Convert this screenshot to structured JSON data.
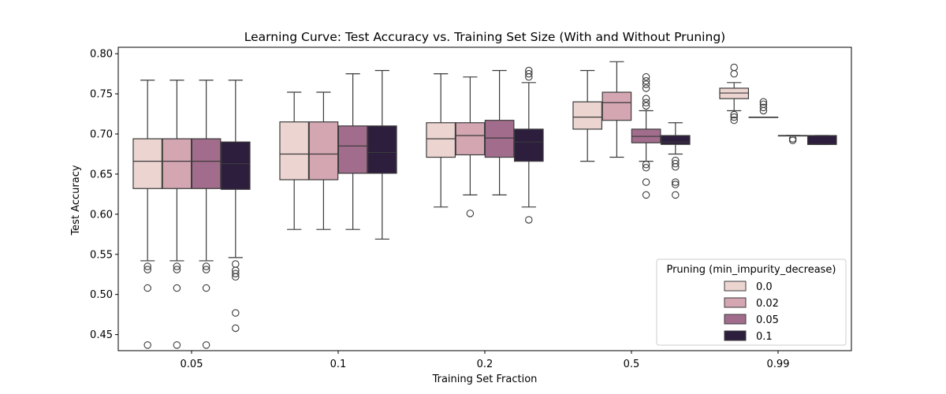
{
  "chart_data": {
    "type": "box",
    "title": "Learning Curve: Test Accuracy vs. Training Set Size (With and Without Pruning)",
    "xlabel": "Training Set Fraction",
    "ylabel": "Test Accuracy",
    "ylim": [
      0.43,
      0.808
    ],
    "yticks": [
      0.45,
      0.5,
      0.55,
      0.6,
      0.65,
      0.7,
      0.75,
      0.8
    ],
    "ytick_labels": [
      "0.45",
      "0.50",
      "0.55",
      "0.60",
      "0.65",
      "0.70",
      "0.75",
      "0.80"
    ],
    "categories": [
      "0.05",
      "0.1",
      "0.2",
      "0.5",
      "0.99"
    ],
    "grid": false,
    "legend": {
      "title": "Pruning (min_impurity_decrease)",
      "placement": "lower-right"
    },
    "series": [
      {
        "name": "0.0",
        "color": "#ecd5d1",
        "boxes": [
          {
            "whislo": 0.542,
            "q1": 0.632,
            "med": 0.666,
            "q3": 0.694,
            "whishi": 0.767,
            "fliers": [
              0.535,
              0.531,
              0.508,
              0.437
            ]
          },
          {
            "whislo": 0.581,
            "q1": 0.643,
            "med": 0.675,
            "q3": 0.715,
            "whishi": 0.752,
            "fliers": []
          },
          {
            "whislo": 0.609,
            "q1": 0.671,
            "med": 0.694,
            "q3": 0.714,
            "whishi": 0.775,
            "fliers": []
          },
          {
            "whislo": 0.666,
            "q1": 0.706,
            "med": 0.721,
            "q3": 0.74,
            "whishi": 0.779,
            "fliers": []
          },
          {
            "whislo": 0.729,
            "q1": 0.744,
            "med": 0.751,
            "q3": 0.757,
            "whishi": 0.764,
            "fliers": [
              0.783,
              0.775,
              0.724,
              0.721,
              0.717
            ]
          }
        ]
      },
      {
        "name": "0.02",
        "color": "#d3a6b2",
        "boxes": [
          {
            "whislo": 0.542,
            "q1": 0.632,
            "med": 0.666,
            "q3": 0.694,
            "whishi": 0.767,
            "fliers": [
              0.535,
              0.531,
              0.508,
              0.437
            ]
          },
          {
            "whislo": 0.581,
            "q1": 0.643,
            "med": 0.675,
            "q3": 0.715,
            "whishi": 0.752,
            "fliers": []
          },
          {
            "whislo": 0.624,
            "q1": 0.674,
            "med": 0.698,
            "q3": 0.714,
            "whishi": 0.771,
            "fliers": [
              0.601
            ]
          },
          {
            "whislo": 0.671,
            "q1": 0.717,
            "med": 0.739,
            "q3": 0.752,
            "whishi": 0.79,
            "fliers": []
          },
          {
            "whislo": 0.721,
            "q1": 0.721,
            "med": 0.721,
            "q3": 0.721,
            "whishi": 0.721,
            "fliers": [
              0.74,
              0.737,
              0.733,
              0.729
            ]
          }
        ]
      },
      {
        "name": "0.05",
        "color": "#a26d8c",
        "boxes": [
          {
            "whislo": 0.542,
            "q1": 0.632,
            "med": 0.666,
            "q3": 0.694,
            "whishi": 0.767,
            "fliers": [
              0.535,
              0.531,
              0.508,
              0.437
            ]
          },
          {
            "whislo": 0.581,
            "q1": 0.651,
            "med": 0.685,
            "q3": 0.71,
            "whishi": 0.775,
            "fliers": []
          },
          {
            "whislo": 0.624,
            "q1": 0.671,
            "med": 0.695,
            "q3": 0.717,
            "whishi": 0.779,
            "fliers": []
          },
          {
            "whislo": 0.666,
            "q1": 0.689,
            "med": 0.697,
            "q3": 0.706,
            "whishi": 0.729,
            "fliers": [
              0.771,
              0.766,
              0.762,
              0.757,
              0.744,
              0.739,
              0.735,
              0.662,
              0.658,
              0.64,
              0.624
            ]
          },
          {
            "whislo": 0.698,
            "q1": 0.698,
            "med": 0.698,
            "q3": 0.698,
            "whishi": 0.698,
            "fliers": [
              0.694,
              0.692
            ]
          }
        ]
      },
      {
        "name": "0.1",
        "color": "#2d1e3e",
        "boxes": [
          {
            "whislo": 0.546,
            "q1": 0.631,
            "med": 0.663,
            "q3": 0.69,
            "whishi": 0.767,
            "fliers": [
              0.538,
              0.53,
              0.526,
              0.522,
              0.477,
              0.458
            ]
          },
          {
            "whislo": 0.569,
            "q1": 0.651,
            "med": 0.677,
            "q3": 0.71,
            "whishi": 0.779,
            "fliers": []
          },
          {
            "whislo": 0.609,
            "q1": 0.666,
            "med": 0.69,
            "q3": 0.706,
            "whishi": 0.764,
            "fliers": [
              0.779,
              0.775,
              0.771,
              0.593
            ]
          },
          {
            "whislo": 0.675,
            "q1": 0.687,
            "med": 0.69,
            "q3": 0.698,
            "whishi": 0.714,
            "fliers": [
              0.667,
              0.663,
              0.659,
              0.64,
              0.637,
              0.624
            ]
          },
          {
            "whislo": 0.687,
            "q1": 0.687,
            "med": 0.687,
            "q3": 0.698,
            "whishi": 0.698,
            "fliers": []
          }
        ]
      }
    ]
  }
}
